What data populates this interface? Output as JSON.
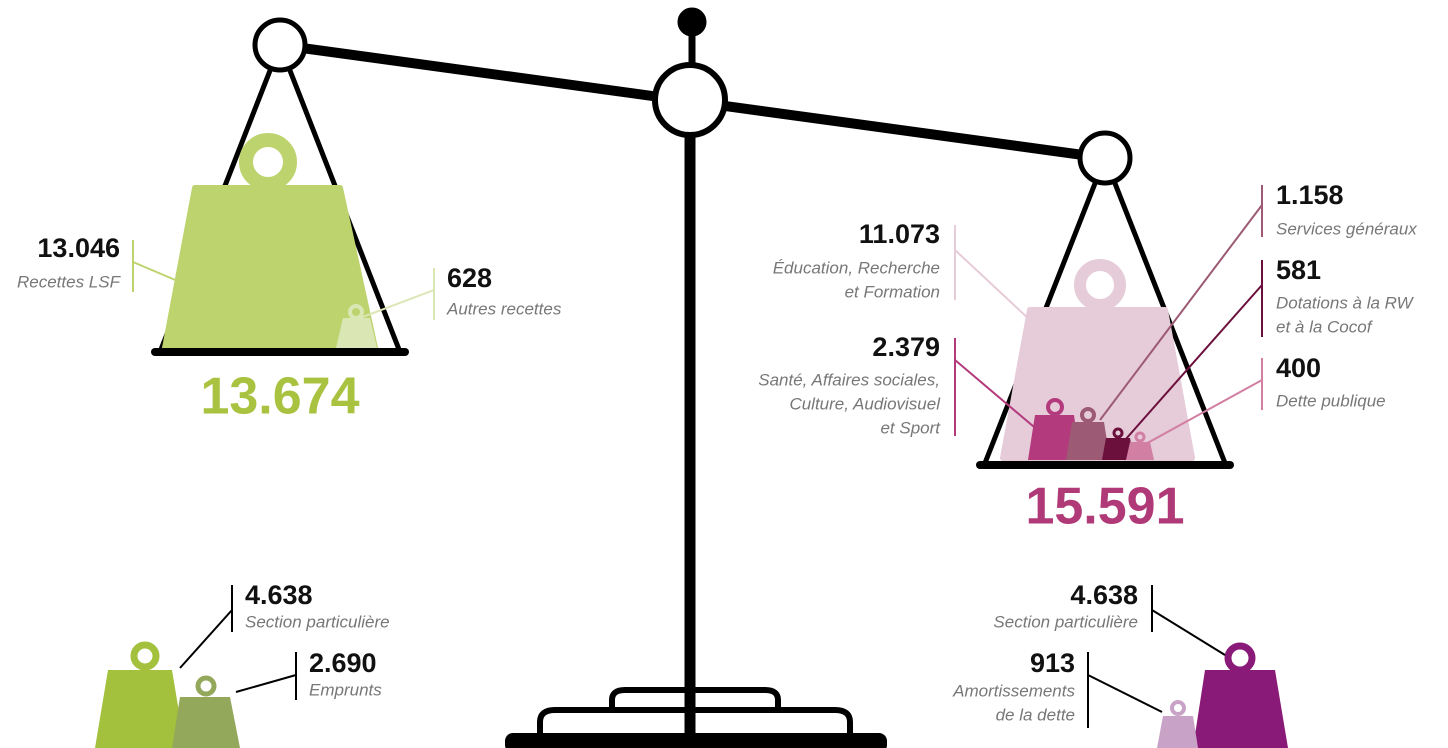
{
  "left_pan": {
    "total": "13.674",
    "items": [
      {
        "value": "13.046",
        "label": [
          "Recettes LSF"
        ]
      },
      {
        "value": "628",
        "label": [
          "Autres recettes"
        ]
      }
    ]
  },
  "right_pan": {
    "total": "15.591",
    "items": [
      {
        "value": "11.073",
        "label": [
          "Éducation, Recherche",
          "et Formation"
        ]
      },
      {
        "value": "2.379",
        "label": [
          "Santé, Affaires sociales,",
          "Culture, Audiovisuel",
          "et Sport"
        ]
      },
      {
        "value": "1.158",
        "label": [
          "Services généraux"
        ]
      },
      {
        "value": "581",
        "label": [
          "Dotations à la RW",
          "et à la Cocof"
        ]
      },
      {
        "value": "400",
        "label": [
          "Dette publique"
        ]
      }
    ]
  },
  "bottom_left": {
    "items": [
      {
        "value": "4.638",
        "label": [
          "Section particulière"
        ]
      },
      {
        "value": "2.690",
        "label": [
          "Emprunts"
        ]
      }
    ]
  },
  "bottom_right": {
    "items": [
      {
        "value": "4.638",
        "label": [
          "Section particulière"
        ]
      },
      {
        "value": "913",
        "label": [
          "Amortissements",
          "de la dette"
        ]
      }
    ]
  }
}
